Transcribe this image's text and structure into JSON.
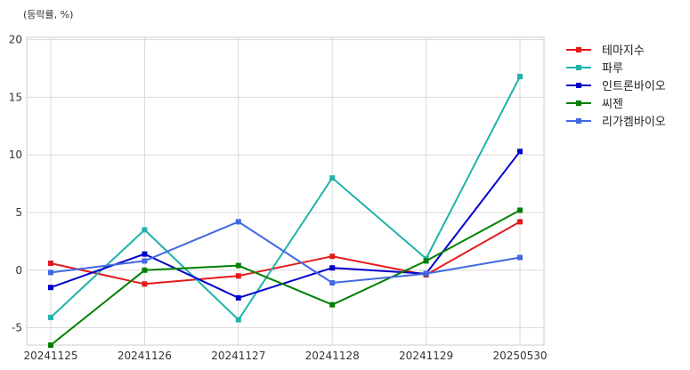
{
  "chart_data": {
    "type": "line",
    "unit_label": "(등락률, %)",
    "categories": [
      "20241125",
      "20241126",
      "20241127",
      "20241128",
      "20241129",
      "20250530"
    ],
    "ylim": [
      -6.5,
      20.2
    ],
    "yticks": [
      -5,
      0,
      5,
      10,
      15,
      20
    ],
    "grid": true,
    "legend_position": "right",
    "series": [
      {
        "name": "테마지수",
        "color": "#e41a1c",
        "values": [
          0.6,
          -1.2,
          -0.5,
          1.2,
          -0.4,
          4.2
        ]
      },
      {
        "name": "파루",
        "color": "#20b2aa",
        "values": [
          -4.1,
          3.5,
          -4.3,
          8.0,
          1.0,
          16.8
        ]
      },
      {
        "name": "인트론바이오",
        "color": "#0000cd",
        "values": [
          -1.5,
          1.4,
          -2.4,
          0.2,
          -0.3,
          10.3
        ]
      },
      {
        "name": "씨젠",
        "color": "#008000",
        "values": [
          -6.5,
          0.0,
          0.4,
          -3.0,
          0.8,
          5.2
        ]
      },
      {
        "name": "리가켐바이오",
        "color": "#4169e1",
        "values": [
          -0.2,
          0.8,
          4.2,
          -1.1,
          -0.3,
          1.1
        ]
      }
    ]
  }
}
